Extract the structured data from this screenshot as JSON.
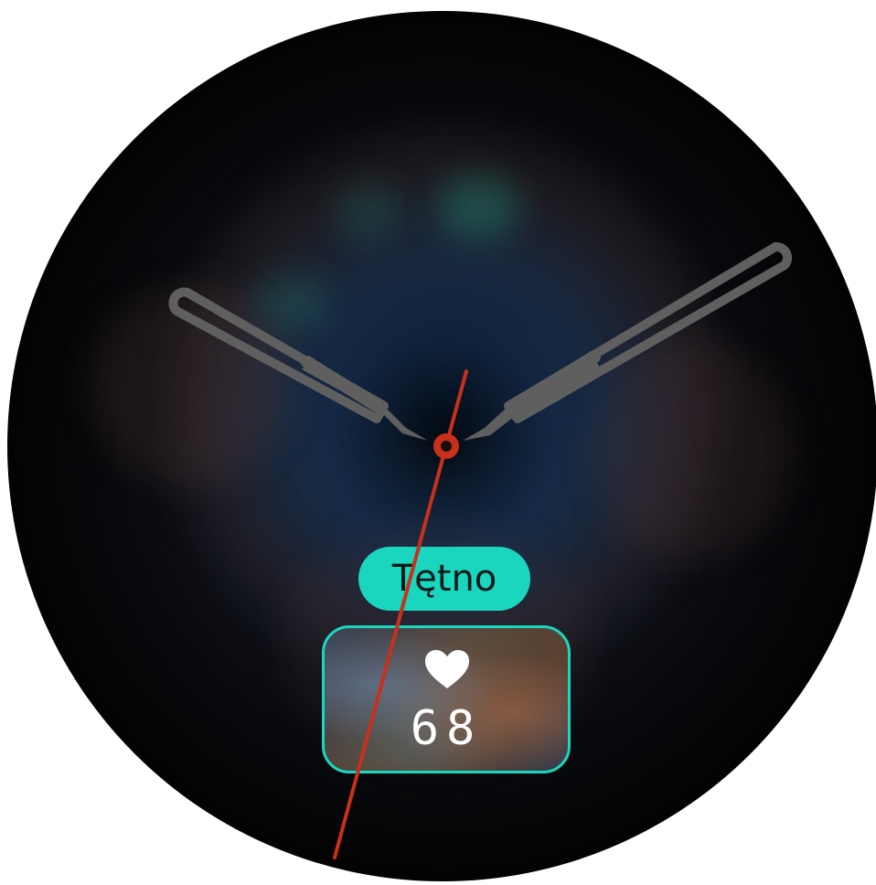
{
  "watch_face": {
    "complication": {
      "label": "Tętno",
      "icon": "heart-icon",
      "value": "68",
      "accent_color": "#1ad6bf"
    },
    "hands": {
      "hour_minute_color": "#5f5f5f",
      "second_color": "#c9301c"
    }
  }
}
